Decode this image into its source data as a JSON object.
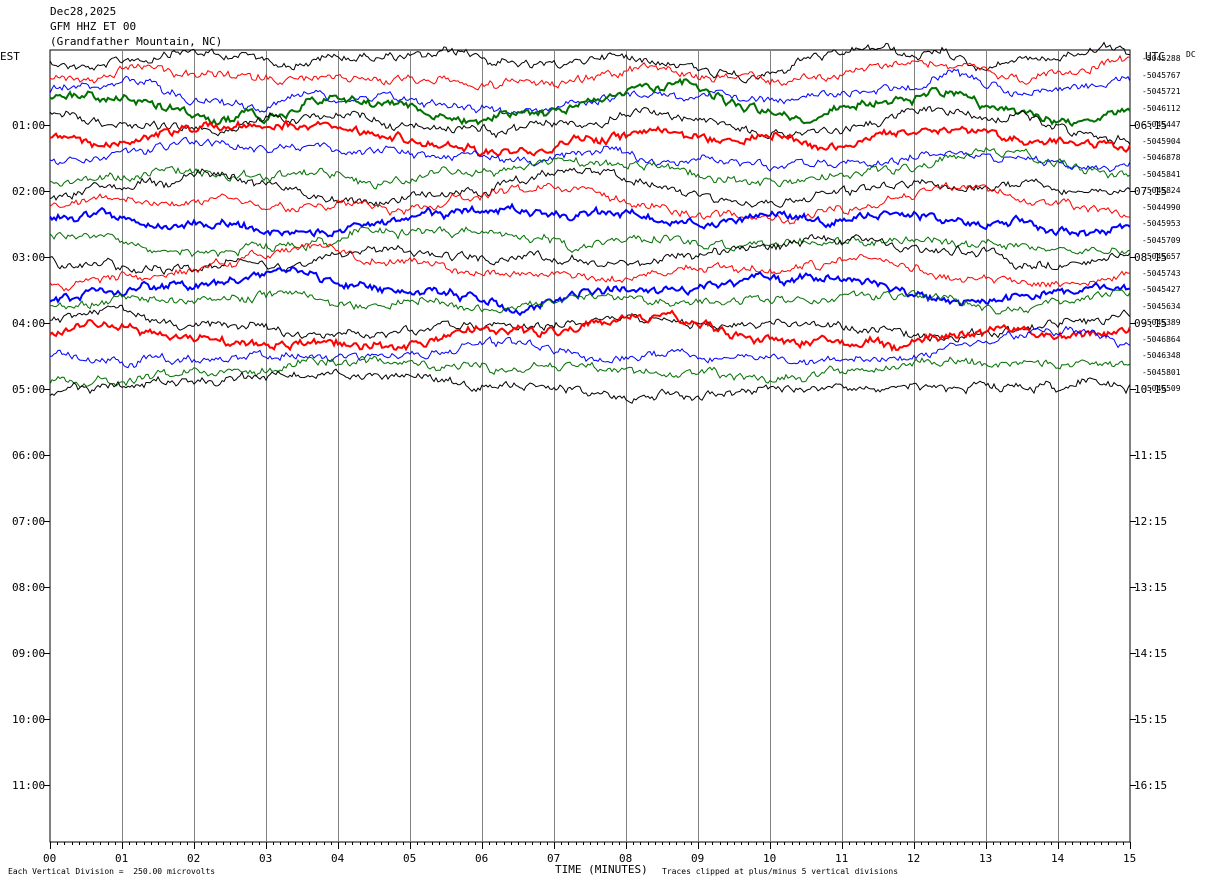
{
  "header": {
    "date": "Dec28,2025",
    "station": "GFM HHZ ET 00",
    "location": "(Grandfather Mountain, NC)"
  },
  "left_tz": "EST",
  "right_tz": "UTC",
  "dc_label": "DC",
  "footer": {
    "scale_note": "Each Vertical Division =  250.00 microvolts",
    "xlabel": "TIME (MINUTES)",
    "clip_note": "Traces clipped at plus/minus 5 vertical divisions"
  },
  "colors": {
    "trace_cycle": [
      "#000000",
      "#ff0000",
      "#0000ff",
      "#007000"
    ],
    "grid": "#808080"
  },
  "chart_data": {
    "type": "line",
    "title": "GFM HHZ ET 00",
    "xlabel": "TIME (MINUTES)",
    "xlim": [
      0,
      15
    ],
    "x_ticks": [
      "00",
      "01",
      "02",
      "03",
      "04",
      "05",
      "06",
      "07",
      "08",
      "09",
      "10",
      "11",
      "12",
      "13",
      "14",
      "15"
    ],
    "left_time_labels": [
      "01:00",
      "02:00",
      "03:00",
      "04:00",
      "05:00",
      "06:00",
      "07:00",
      "08:00",
      "09:00",
      "10:00",
      "11:00"
    ],
    "right_time_labels": [
      "06:15",
      "07:15",
      "08:15",
      "09:15",
      "10:15",
      "11:15",
      "12:15",
      "13:15",
      "14:15",
      "15:15",
      "16:15"
    ],
    "trace_start_est": "00:00",
    "trace_interval_minutes": 15,
    "dc_offsets": [
      "-5045288",
      "-5045767",
      "-5045721",
      "-5046112",
      "-5045447",
      "-5045904",
      "-5046878",
      "-5045841",
      "-5045824",
      "-5044990",
      "-5045953",
      "-5045709",
      "-5045657",
      "-5045743",
      "-5045427",
      "-5045634",
      "-5045389",
      "-5046864",
      "-5046348",
      "-5045801",
      "-5046509"
    ],
    "grid": true
  }
}
